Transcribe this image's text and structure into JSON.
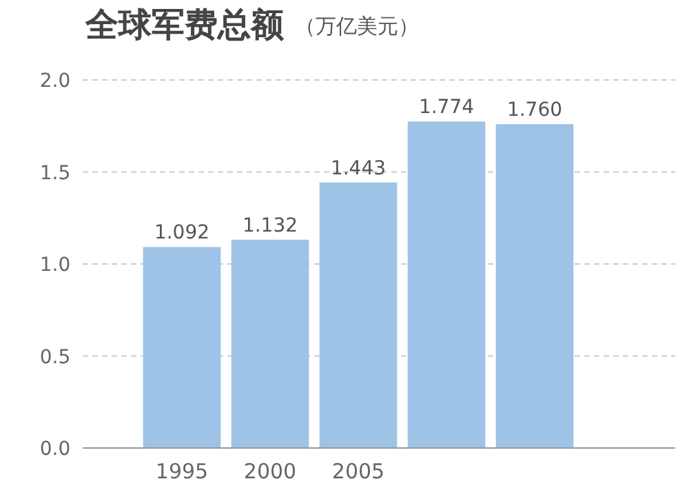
{
  "chart_data": {
    "type": "bar",
    "title": "全球军费总额",
    "subtitle": "（万亿美元）",
    "categories": [
      "1995",
      "2000",
      "2005",
      null,
      null
    ],
    "values": [
      1.092,
      1.132,
      1.443,
      1.774,
      1.76
    ],
    "color": "#9dc3e6",
    "ylim": [
      0,
      2.0
    ],
    "yticks": [
      {
        "value": 0,
        "label": "0.0"
      },
      {
        "value": 0.5,
        "label": "0.5"
      },
      {
        "value": 1.0,
        "label": "1.0"
      },
      {
        "value": 1.5,
        "label": "1.5"
      },
      {
        "value": 2.0,
        "label": "2.0"
      }
    ],
    "grid": "y",
    "value_labels": [
      "1.092",
      "1.132",
      "1.443",
      "1.774",
      "1.760"
    ]
  }
}
